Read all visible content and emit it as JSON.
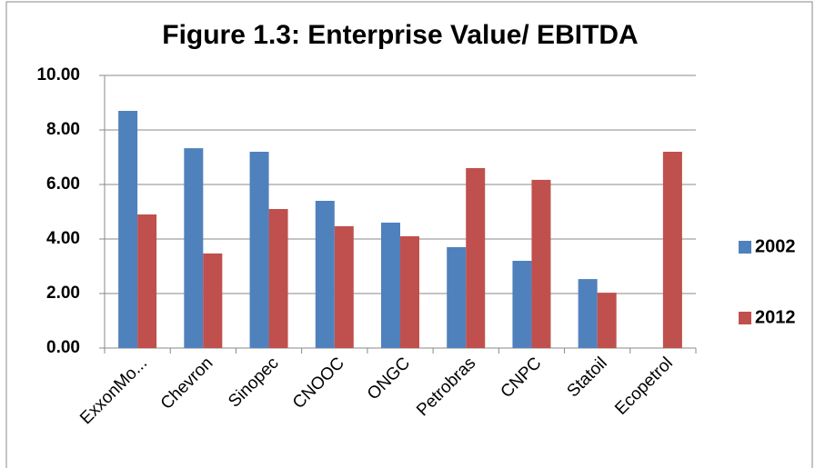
{
  "chart_data": {
    "type": "bar",
    "title": "Figure 1.3: Enterprise Value/ EBITDA",
    "categories": [
      "ExxonMo...",
      "Chevron",
      "Sinopec",
      "CNOOC",
      "ONGC",
      "Petrobras",
      "CNPC",
      "Statoil",
      "Ecopetrol"
    ],
    "series": [
      {
        "name": "2002",
        "color": "#4f81bd",
        "values": [
          8.7,
          7.33,
          7.2,
          5.4,
          4.6,
          3.7,
          3.2,
          2.53,
          null
        ]
      },
      {
        "name": "2012",
        "color": "#c0504d",
        "values": [
          4.9,
          3.47,
          5.1,
          4.47,
          4.1,
          6.6,
          6.17,
          2.03,
          7.2
        ]
      }
    ],
    "ylim": [
      0,
      10
    ],
    "yticks": [
      {
        "value": 0,
        "label": "0.00"
      },
      {
        "value": 2,
        "label": "2.00"
      },
      {
        "value": 4,
        "label": "4.00"
      },
      {
        "value": 6,
        "label": "6.00"
      },
      {
        "value": 8,
        "label": "8.00"
      },
      {
        "value": 10,
        "label": "10.00"
      }
    ],
    "grid": true,
    "legend": "right"
  }
}
